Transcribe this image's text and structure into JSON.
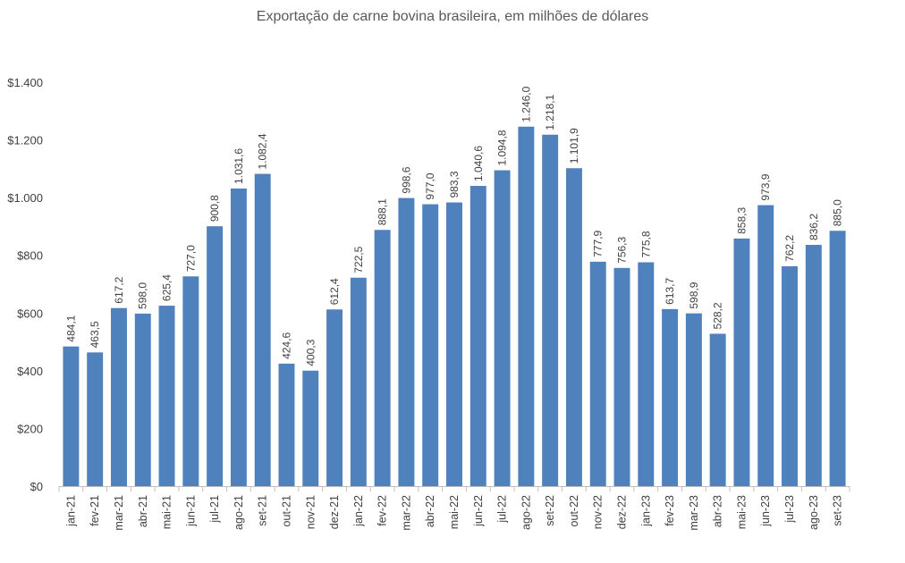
{
  "chart_data": {
    "type": "bar",
    "title": "Exportação de carne bovina brasileira, em milhões de dólares",
    "xlabel": "",
    "ylabel": "",
    "ylim": [
      0,
      1400
    ],
    "yticks": [
      0,
      200,
      400,
      600,
      800,
      1000,
      1200,
      1400
    ],
    "ytick_labels": [
      "$0",
      "$200",
      "$400",
      "$600",
      "$800",
      "$1.000",
      "$1.200",
      "$1.400"
    ],
    "grid": false,
    "legend": "none",
    "bar_color": "#4F81BD",
    "categories": [
      "jan-21",
      "fev-21",
      "mar-21",
      "abr-21",
      "mai-21",
      "jun-21",
      "jul-21",
      "ago-21",
      "set-21",
      "out-21",
      "nov-21",
      "dez-21",
      "jan-22",
      "fev-22",
      "mar-22",
      "abr-22",
      "mai-22",
      "jun-22",
      "jul-22",
      "ago-22",
      "set-22",
      "out-22",
      "nov-22",
      "dez-22",
      "jan-23",
      "fev-23",
      "mar-23",
      "abr-23",
      "mai-23",
      "jun-23",
      "jul-23",
      "ago-23",
      "set-23"
    ],
    "values": [
      484.1,
      463.5,
      617.2,
      598.0,
      625.4,
      727.0,
      900.8,
      1031.6,
      1082.4,
      424.6,
      400.3,
      612.4,
      722.5,
      888.1,
      998.6,
      977.0,
      983.3,
      1040.6,
      1094.8,
      1246.0,
      1218.1,
      1101.9,
      777.9,
      756.3,
      775.8,
      613.7,
      598.9,
      528.2,
      858.3,
      973.9,
      762.2,
      836.2,
      885.0
    ],
    "data_labels": [
      "484,1",
      "463,5",
      "617,2",
      "598,0",
      "625,4",
      "727,0",
      "900,8",
      "1.031,6",
      "1.082,4",
      "424,6",
      "400,3",
      "612,4",
      "722,5",
      "888,1",
      "998,6",
      "977,0",
      "983,3",
      "1.040,6",
      "1.094,8",
      "1.246,0",
      "1.218,1",
      "1.101,9",
      "777,9",
      "756,3",
      "775,8",
      "613,7",
      "598,9",
      "528,2",
      "858,3",
      "973,9",
      "762,2",
      "836,2",
      "885,0"
    ]
  }
}
